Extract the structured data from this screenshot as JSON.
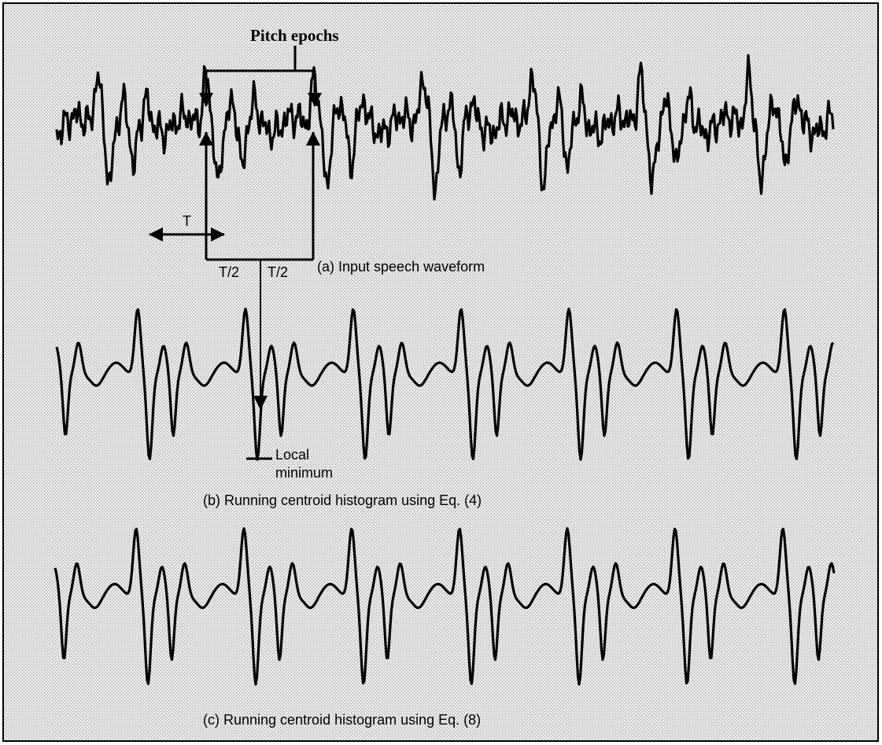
{
  "figure": {
    "label_pitch_epochs": "Pitch epochs",
    "caption_a": "(a)  Input speech waveform",
    "label_half_left": "T/2",
    "label_half_right": "T/2",
    "label_period": "T",
    "label_local": "Local",
    "label_minimum": "minimum",
    "caption_b": "(b)  Running centroid histogram using Eq. (4)",
    "caption_c": "(c)  Running centroid histogram using Eq. (8)"
  }
}
